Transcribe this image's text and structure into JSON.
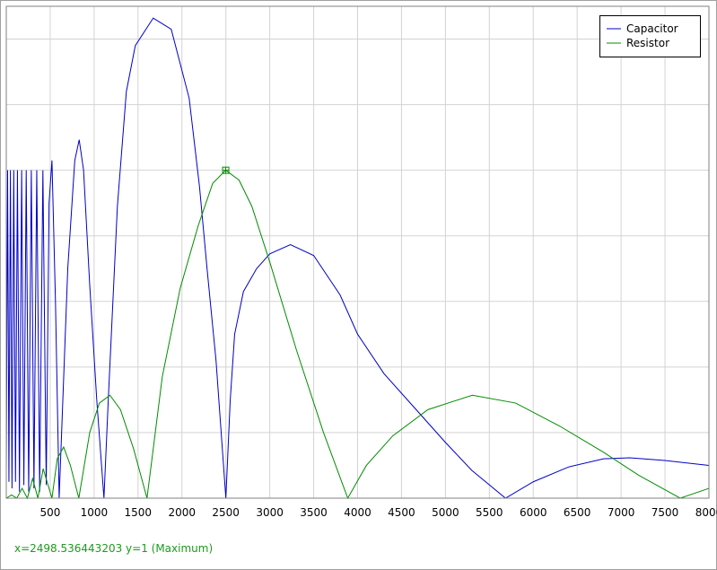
{
  "chart_data": {
    "type": "line",
    "xlim": [
      0,
      8000
    ],
    "ylim": [
      0,
      1.5
    ],
    "xticks": [
      500,
      1000,
      1500,
      2000,
      2500,
      3000,
      3500,
      4000,
      4500,
      5000,
      5500,
      6000,
      6500,
      7000,
      7500,
      8000
    ],
    "yticks": [
      0,
      0.2,
      0.4,
      0.6,
      0.8,
      1,
      1.2,
      1.4
    ],
    "grid": true,
    "legend": "upper right",
    "series": [
      {
        "name": "Capacitor",
        "color": "#0000c8",
        "x": [
          0,
          15,
          30,
          47,
          65,
          85,
          105,
          127,
          150,
          175,
          200,
          227,
          255,
          285,
          315,
          347,
          380,
          417,
          455,
          487,
          520,
          560,
          602,
          700,
          780,
          830,
          880,
          950,
          1030,
          1112,
          1163,
          1265,
          1367,
          1469,
          1673,
          1878,
          2082,
          2200,
          2286,
          2388,
          2500,
          2550,
          2600,
          2700,
          2850,
          3000,
          3235,
          3500,
          3800,
          4000,
          4300,
          4700,
          5000,
          5300,
          5684,
          6000,
          6400,
          6800,
          7100,
          7500,
          8000
        ],
        "values": [
          0.08,
          1.0,
          0.05,
          1.0,
          0.03,
          1.0,
          0.05,
          1.0,
          0.02,
          1.0,
          0.04,
          1.0,
          0.02,
          1.0,
          0.03,
          1.0,
          0.02,
          1.0,
          0.04,
          0.9,
          1.03,
          0.6,
          0,
          0.7,
          1.03,
          1.093,
          1.0,
          0.65,
          0.3,
          0,
          0.31,
          0.89,
          1.24,
          1.38,
          1.464,
          1.43,
          1.22,
          0.95,
          0.7,
          0.42,
          0,
          0.3,
          0.5,
          0.63,
          0.7,
          0.745,
          0.773,
          0.74,
          0.62,
          0.5,
          0.38,
          0.26,
          0.17,
          0.085,
          0,
          0.05,
          0.095,
          0.12,
          0.123,
          0.115,
          0.1
        ]
      },
      {
        "name": "Resistor",
        "color": "#008c00",
        "x": [
          0,
          60,
          120,
          180,
          240,
          300,
          360,
          420,
          520,
          580,
          653,
          730,
          826,
          950,
          1060,
          1180,
          1300,
          1450,
          1602,
          1673,
          1776,
          1980,
          2184,
          2350,
          2498,
          2650,
          2796,
          3000,
          3306,
          3612,
          3888,
          4100,
          4400,
          4800,
          5306,
          5800,
          6300,
          6800,
          7200,
          7673,
          8000
        ],
        "values": [
          0,
          0.01,
          0,
          0.03,
          0,
          0.06,
          0,
          0.09,
          0,
          0.12,
          0.156,
          0.1,
          0,
          0.2,
          0.29,
          0.314,
          0.27,
          0.15,
          0,
          0.15,
          0.37,
          0.64,
          0.83,
          0.96,
          1,
          0.97,
          0.89,
          0.72,
          0.45,
          0.2,
          0,
          0.1,
          0.19,
          0.27,
          0.314,
          0.29,
          0.22,
          0.14,
          0.07,
          0,
          0.03
        ]
      }
    ],
    "marker": {
      "x": 2498.536443203,
      "y": 1,
      "series": 1
    },
    "status": "x=2498.536443203 y=1 (Maximum)"
  }
}
